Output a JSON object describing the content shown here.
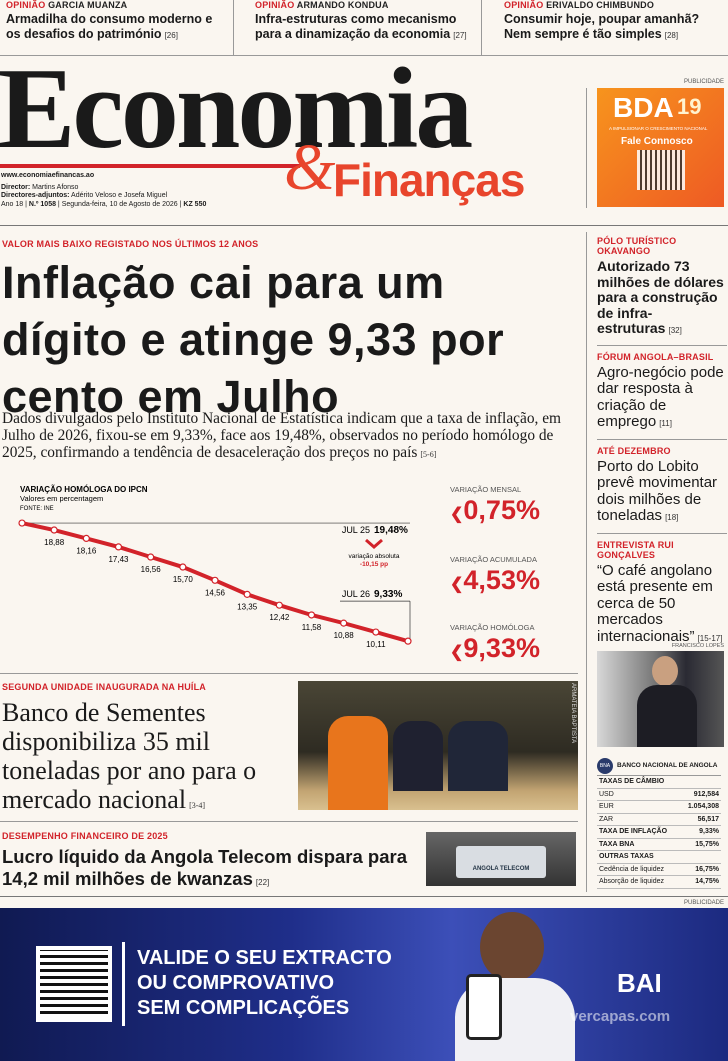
{
  "top_links": [
    {
      "kicker": "OPINIÃO",
      "author": "GARCIA MUANZA",
      "title": "Armadilha do consumo moderno e os desafios do património",
      "page": "[26]"
    },
    {
      "kicker": "OPINIÃO",
      "author": "ARMANDO KONDUA",
      "title": "Infra-estruturas como mecanismo para a dinamização da economia",
      "page": "[27]"
    },
    {
      "kicker": "OPINIÃO",
      "author": "ERIVALDO CHIMBUNDO",
      "title": "Consumir hoje, poupar amanhã? Nem sempre é tão simples",
      "page": "[28]"
    }
  ],
  "masthead": {
    "name_1": "Economia",
    "name_2": "&",
    "name_3": "Finanças",
    "url": "www.economiaefinancas.ao",
    "director_label": "Director:",
    "director": "Martins Afonso",
    "deputy_label": "Directores-adjuntos:",
    "deputies": "Adérito Veloso e Josefa Miguel",
    "issue_year": "Ano 18",
    "issue_number": "N.º 1058",
    "issue_date": "Segunda-feira, 10 de Agosto de 2026",
    "issue_price": "KZ 550"
  },
  "ad_top": {
    "label": "PUBLICIDADE",
    "brand": "BDA",
    "years": "19",
    "tagline": "A IMPULSIONAR O CRESCIMENTO NACIONAL",
    "cta": "Fale Connosco"
  },
  "lead": {
    "kicker": "VALOR MAIS BAIXO REGISTADO NOS ÚLTIMOS 12 ANOS",
    "headline": "Inflação cai para um dígito e atinge 9,33 por cento em Julho",
    "body": "Dados divulgados pelo Instituto Nacional de Estatística indicam que a taxa de inflação, em Julho de 2026, fixou-se em 9,33%, face aos 19,48%, observados no período homólogo de 2025, confirmando a tendência de desaceleração dos preços no país",
    "page": "[5-6]"
  },
  "chart_data": {
    "type": "line",
    "title": "VARIAÇÃO HOMÓLOGA DO IPCN",
    "subtitle": "Valores em percentagem",
    "source": "FONTE: INE",
    "categories": [
      "JUL 25",
      null,
      null,
      null,
      null,
      null,
      null,
      null,
      null,
      null,
      null,
      null,
      "JUL 26"
    ],
    "values": [
      19.48,
      18.88,
      18.16,
      17.43,
      16.56,
      15.7,
      14.56,
      13.35,
      12.42,
      11.58,
      10.88,
      10.11,
      9.33
    ],
    "value_labels": [
      "19,48%",
      "18,88",
      "18,16",
      "17,43",
      "16,56",
      "15,70",
      "14,56",
      "13,35",
      "12,42",
      "11,58",
      "10,88",
      "10,11",
      "9,33%"
    ],
    "color": "#d2232a",
    "ylim": [
      9,
      20
    ],
    "annotations": [
      "variação absoluta",
      "-10,15 pp"
    ]
  },
  "indicators": [
    {
      "label": "VARIAÇÃO MENSAL",
      "value": "0,75%"
    },
    {
      "label": "VARIAÇÃO ACUMULADA",
      "value": "4,53%"
    },
    {
      "label": "VARIAÇÃO HOMÓLOGA",
      "value": "9,33%"
    }
  ],
  "sidebar": [
    {
      "kicker": "PÓLO TURÍSTICO OKAVANGO",
      "headline": "Autorizado 73 milhões de dólares para a construção de infra-estruturas",
      "page": "[32]"
    },
    {
      "kicker": "FÓRUM ANGOLA–BRASIL",
      "headline": "Agro-negócio pode dar resposta à criação de emprego",
      "page": "[11]"
    },
    {
      "kicker": "ATÉ DEZEMBRO",
      "headline": "Porto do Lobito prevê movimentar dois milhões de toneladas",
      "page": "[18]"
    },
    {
      "kicker": "ENTREVISTA RUI GONÇALVES",
      "headline": "“O café angolano está presente em cerca de 50 mercados internacionais”",
      "page": "[15-17]"
    }
  ],
  "sidebar_photo_credit": "FRANCISCO LOPES",
  "story2": {
    "kicker": "SEGUNDA UNIDADE INAUGURADA NA HUÍLA",
    "headline": "Banco de Sementes disponibiliza 35 mil toneladas por ano para o mercado nacional",
    "page": "[3-4]",
    "photo_credit": "ARMATEIA BAPTISTA"
  },
  "story3": {
    "kicker": "DESEMPENHO FINANCEIRO DE 2025",
    "headline": "Lucro líquido da Angola Telecom dispara para 14,2 mil milhões de kwanzas",
    "page": "[22]",
    "photo_sign": "ANGOLA TELECOM"
  },
  "rates": {
    "bank_short": "BNA",
    "bank": "BANCO NACIONAL DE ANGOLA",
    "rows": [
      [
        "TAXAS DE CÂMBIO",
        null
      ],
      [
        "USD",
        "912,584"
      ],
      [
        "EUR",
        "1.054,308"
      ],
      [
        "ZAR",
        "56,517"
      ],
      [
        "TAXA DE INFLAÇÃO",
        "9,33%"
      ],
      [
        "TAXA BNA",
        "15,75%"
      ],
      [
        "OUTRAS TAXAS",
        null
      ],
      [
        "Cedência de liquidez",
        "16,75%"
      ],
      [
        "Absorção de liquidez",
        "14,75%"
      ]
    ]
  },
  "ad_bottom": {
    "label": "PUBLICIDADE",
    "line_1": "VALIDE O SEU EXTRACTO",
    "line_2": "OU COMPROVATIVO",
    "line_3": "SEM COMPLICAÇÕES",
    "brand": "BAI",
    "watermark": "vercapas.com"
  }
}
